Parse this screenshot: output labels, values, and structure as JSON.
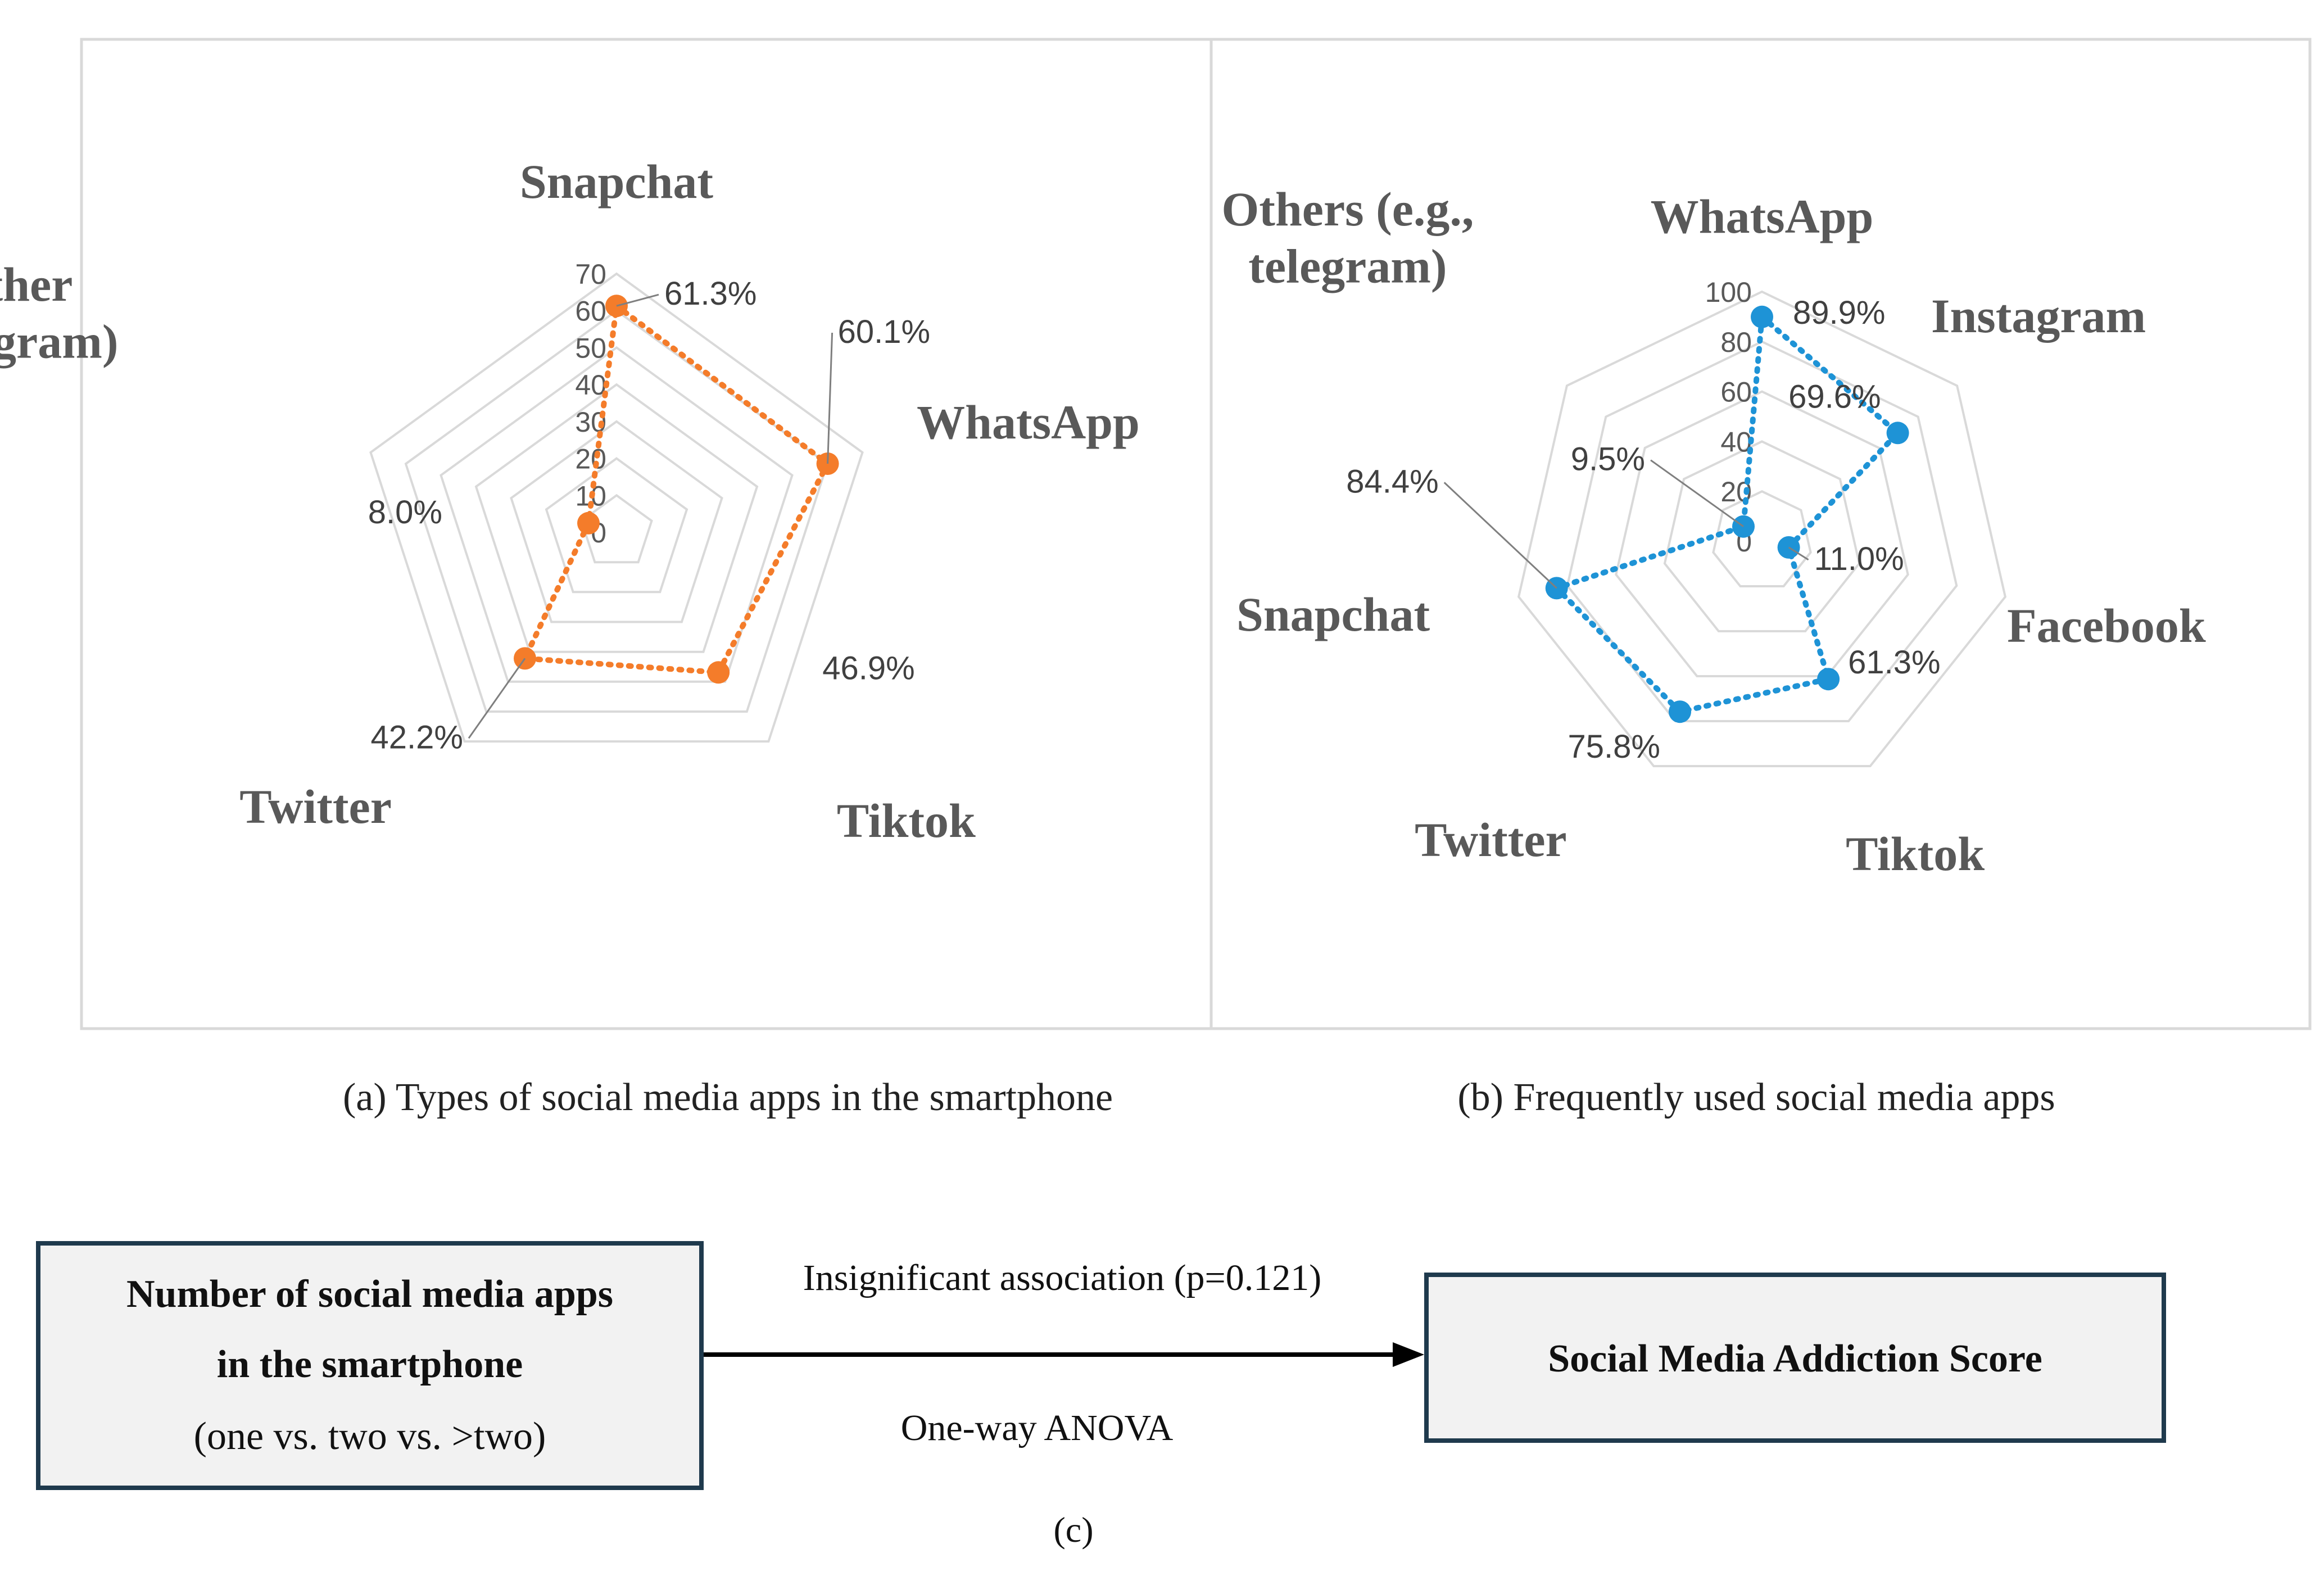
{
  "chart_data": [
    {
      "type": "radar",
      "caption": "(a) Types of social media apps in the smartphone",
      "categories": [
        "Snapchat",
        "WhatsApp",
        "Tiktok",
        "Twitter",
        "Other (telegram)"
      ],
      "category_lines": [
        [
          "Snapchat"
        ],
        [
          "WhatsApp"
        ],
        [
          "Tiktok"
        ],
        [
          "Twitter"
        ],
        [
          "Other",
          "(telegram)"
        ]
      ],
      "values": [
        61.3,
        60.1,
        46.9,
        42.2,
        8.0
      ],
      "data_labels": [
        "61.3%",
        "60.1%",
        "46.9%",
        "42.2%",
        "8.0%"
      ],
      "axis_ticks": [
        "0",
        "10",
        "20",
        "30",
        "40",
        "50",
        "60",
        "70"
      ],
      "rlim": [
        0,
        70
      ],
      "grid": true,
      "color": "#F47C2A",
      "line_style": "dotted"
    },
    {
      "type": "radar",
      "caption": "(b) Frequently used social media apps",
      "categories": [
        "WhatsApp",
        "Instagram",
        "Facebook",
        "Tiktok",
        "Twitter",
        "Snapchat",
        "Others (e.g., telegram)"
      ],
      "category_lines": [
        [
          "WhatsApp"
        ],
        [
          "Instagram"
        ],
        [
          "Facebook"
        ],
        [
          "Tiktok"
        ],
        [
          "Twitter"
        ],
        [
          "Snapchat"
        ],
        [
          "Others (e.g.,",
          "telegram)"
        ]
      ],
      "values": [
        89.9,
        69.6,
        11.0,
        61.3,
        75.8,
        84.4,
        9.5
      ],
      "data_labels": [
        "89.9%",
        "69.6%",
        "11.0%",
        "61.3%",
        "75.8%",
        "84.4%",
        "9.5%"
      ],
      "axis_ticks": [
        "0",
        "20",
        "40",
        "60",
        "80",
        "100"
      ],
      "rlim": [
        0,
        100
      ],
      "grid": true,
      "color": "#1E93D6",
      "line_style": "dotted"
    }
  ],
  "diagram": {
    "left_box": {
      "line1": "Number of social media apps",
      "line2": "in the smartphone",
      "line3": "(one vs. two vs. >two)"
    },
    "right_box": "Social Media Addiction Score",
    "arrow_label_top": "Insignificant association (p=0.121)",
    "arrow_label_bottom": "One-way ANOVA",
    "caption": "(c)"
  },
  "colors": {
    "category_label": "#595959",
    "tick_label": "#595959",
    "grid": "#d9d9d9",
    "panel_border": "#d9d9d9",
    "box_border": "#1f3a4d",
    "box_fill": "#f2f2f2"
  }
}
